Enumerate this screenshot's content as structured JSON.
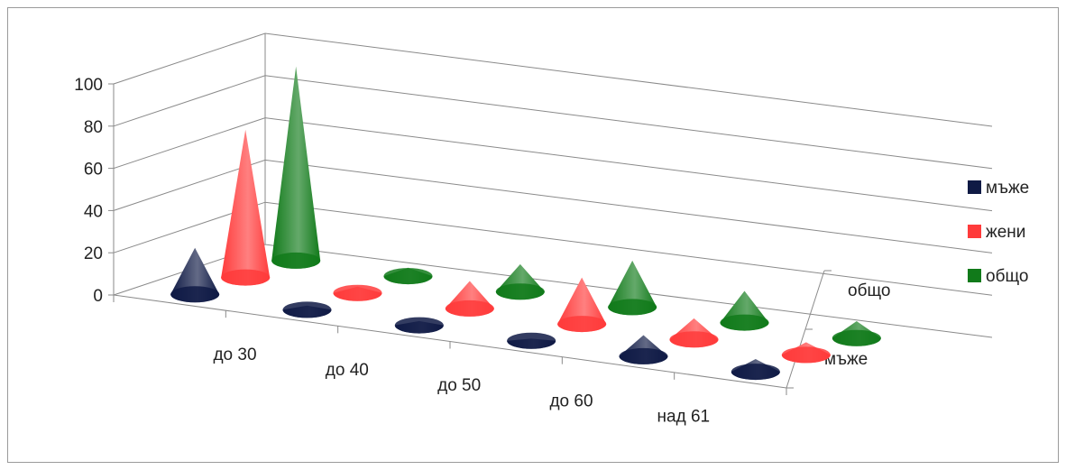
{
  "chart_data": {
    "type": "bar",
    "style": "3d-cone",
    "categories": [
      "",
      "до 30",
      "до 40",
      "до 50",
      "до 60",
      "над 61"
    ],
    "depth_labels": [
      "мъже",
      "общо"
    ],
    "ylim": [
      0,
      100
    ],
    "yticks": [
      "0",
      "20",
      "40",
      "60",
      "80",
      "100"
    ],
    "grid": true,
    "legend": "right",
    "series": [
      {
        "name": "мъже",
        "color": "#0f1a45",
        "values": [
          22,
          2,
          2,
          1,
          10,
          6
        ]
      },
      {
        "name": "жени",
        "color": "#ff3b3b",
        "values": [
          70,
          3,
          13,
          22,
          10,
          6
        ]
      },
      {
        "name": "общо",
        "color": "#117a1a",
        "values": [
          92,
          4,
          13,
          22,
          15,
          8
        ]
      }
    ]
  }
}
